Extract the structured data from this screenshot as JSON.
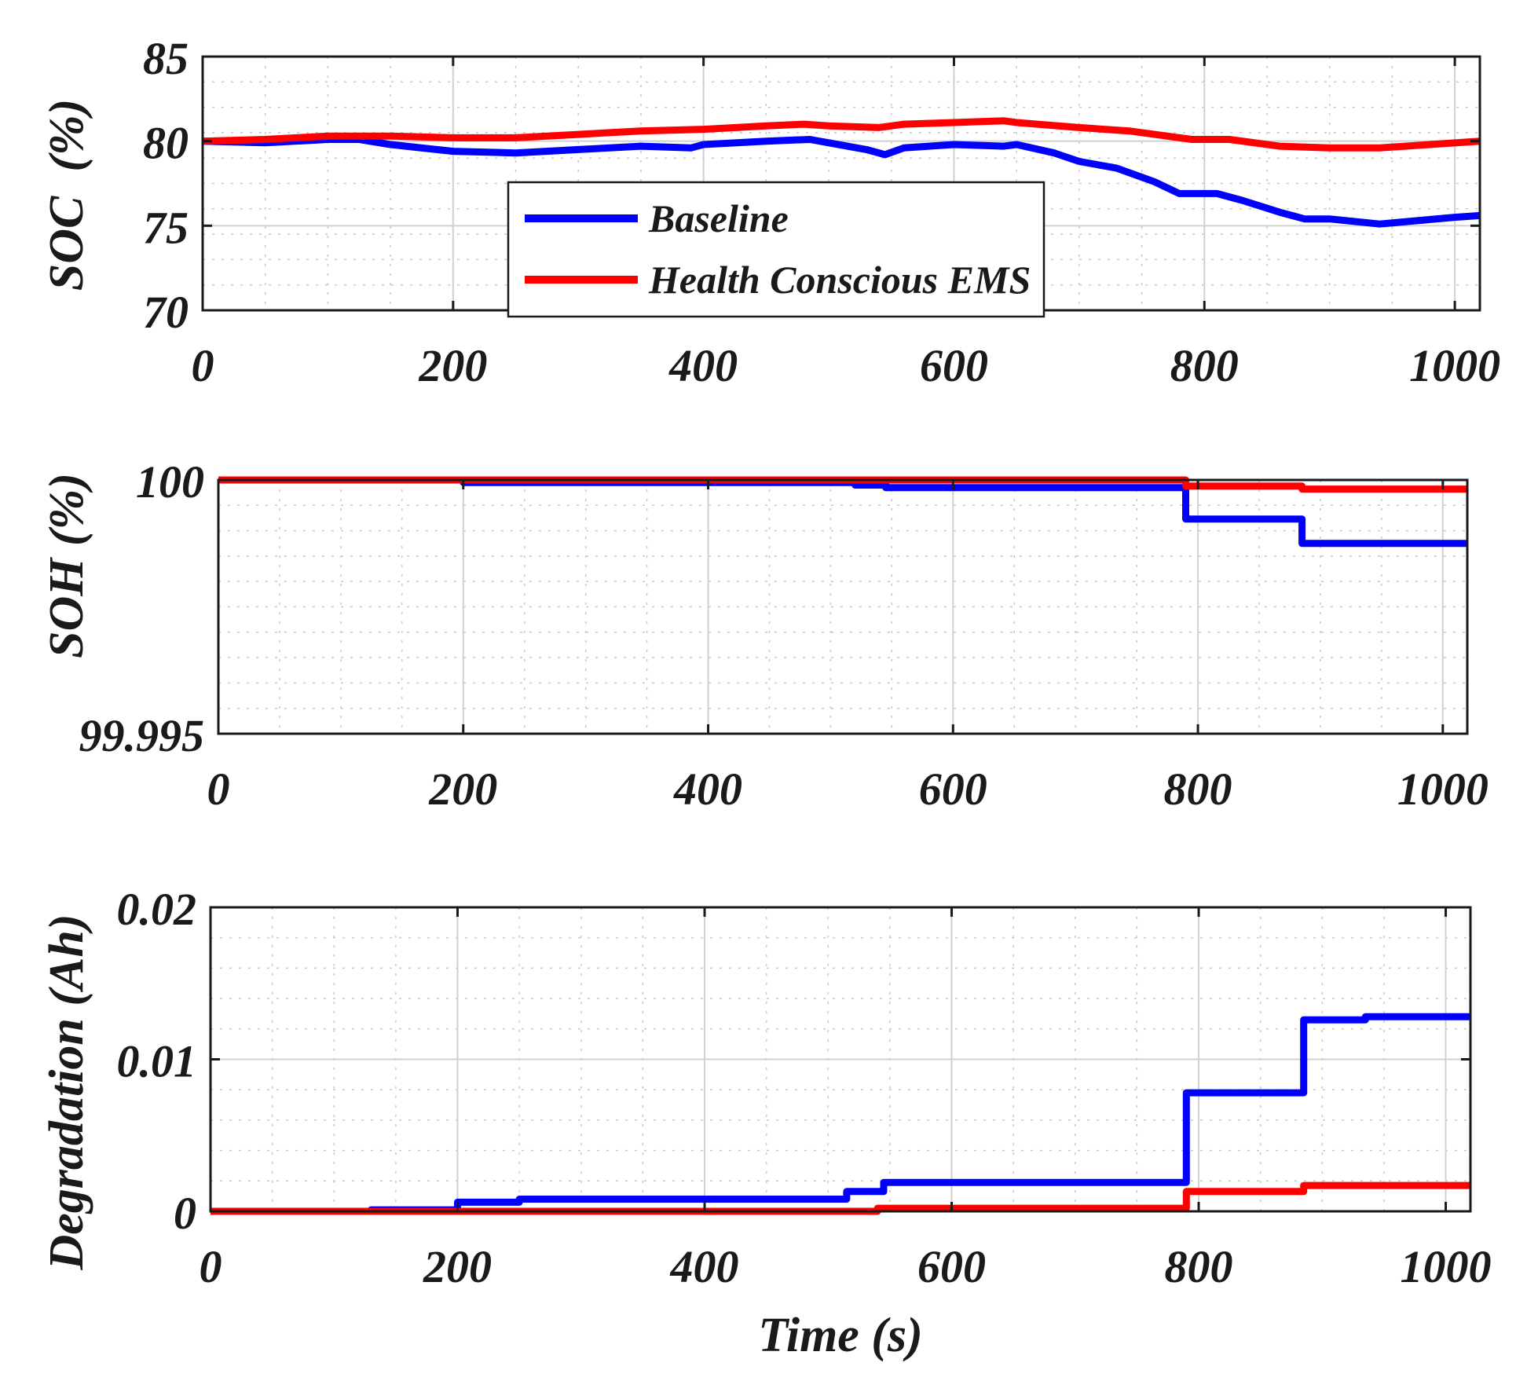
{
  "chart_data": [
    {
      "type": "line",
      "ylabel": "SOC  (%)",
      "xlabel": "",
      "xlim": [
        0,
        1020
      ],
      "ylim": [
        70,
        85
      ],
      "xticks": [
        "0",
        "200",
        "400",
        "600",
        "800",
        "1000"
      ],
      "yticks": [
        "85",
        "80",
        "75",
        "70"
      ],
      "grid": true,
      "legend": {
        "placement": "center",
        "entries": [
          "Baseline",
          "Health Conscious EMS"
        ]
      },
      "series": [
        {
          "name": "Baseline",
          "color": "#0000ff",
          "x": [
            0,
            50,
            100,
            125,
            150,
            200,
            250,
            300,
            350,
            390,
            400,
            450,
            485,
            500,
            530,
            545,
            560,
            600,
            640,
            650,
            680,
            700,
            730,
            760,
            780,
            810,
            830,
            860,
            880,
            900,
            940,
            970,
            1000,
            1020
          ],
          "y": [
            80.0,
            79.9,
            80.1,
            80.1,
            79.8,
            79.4,
            79.3,
            79.5,
            79.7,
            79.6,
            79.8,
            80.0,
            80.1,
            79.9,
            79.5,
            79.2,
            79.6,
            79.8,
            79.7,
            79.8,
            79.3,
            78.8,
            78.4,
            77.6,
            76.9,
            76.9,
            76.5,
            75.8,
            75.4,
            75.4,
            75.1,
            75.3,
            75.5,
            75.6
          ]
        },
        {
          "name": "Health Conscious EMS",
          "color": "#ff0000",
          "x": [
            0,
            50,
            100,
            120,
            150,
            200,
            250,
            300,
            350,
            400,
            450,
            480,
            500,
            540,
            560,
            600,
            640,
            650,
            700,
            740,
            770,
            790,
            820,
            860,
            900,
            940,
            980,
            1020
          ],
          "y": [
            80.0,
            80.1,
            80.3,
            80.3,
            80.3,
            80.2,
            80.2,
            80.4,
            80.6,
            80.7,
            80.9,
            81.0,
            80.9,
            80.8,
            81.0,
            81.1,
            81.2,
            81.1,
            80.8,
            80.6,
            80.3,
            80.1,
            80.1,
            79.7,
            79.6,
            79.6,
            79.8,
            80.0
          ]
        }
      ]
    },
    {
      "type": "line",
      "ylabel": "SOH (%)",
      "xlabel": "",
      "xlim": [
        0,
        1020
      ],
      "ylim": [
        99.995,
        100.0
      ],
      "xticks": [
        "0",
        "200",
        "400",
        "600",
        "800",
        "1000"
      ],
      "yticks": [
        "100",
        "99.995"
      ],
      "grid": true,
      "series": [
        {
          "name": "Baseline",
          "color": "#0000ff",
          "x": [
            0,
            200,
            200,
            520,
            520,
            545,
            545,
            790,
            790,
            885,
            885,
            1020
          ],
          "y": [
            100.0,
            100.0,
            99.99995,
            99.99995,
            99.9999,
            99.9999,
            99.99985,
            99.99985,
            99.99923,
            99.99923,
            99.99875,
            99.99875
          ]
        },
        {
          "name": "Health Conscious EMS",
          "color": "#ff0000",
          "x": [
            0,
            790,
            790,
            885,
            885,
            1020
          ],
          "y": [
            100.0,
            100.0,
            99.99988,
            99.99988,
            99.99982,
            99.99982
          ]
        }
      ]
    },
    {
      "type": "line",
      "ylabel": "Degradation (Ah)",
      "xlabel": "Time (s)",
      "xlim": [
        0,
        1020
      ],
      "ylim": [
        0,
        0.02
      ],
      "xticks": [
        "0",
        "200",
        "400",
        "600",
        "800",
        "1000"
      ],
      "yticks": [
        "0.02",
        "0.01",
        "0"
      ],
      "grid": true,
      "series": [
        {
          "name": "Baseline",
          "color": "#0000ff",
          "x": [
            0,
            130,
            130,
            200,
            200,
            250,
            250,
            515,
            515,
            545,
            545,
            790,
            790,
            885,
            885,
            935,
            935,
            1020
          ],
          "y": [
            0,
            0,
            0.0001,
            0.0001,
            0.0006,
            0.0006,
            0.0008,
            0.0008,
            0.0013,
            0.0013,
            0.0019,
            0.0019,
            0.0078,
            0.0078,
            0.0126,
            0.0126,
            0.0128,
            0.0128
          ]
        },
        {
          "name": "Health Conscious EMS",
          "color": "#ff0000",
          "x": [
            0,
            540,
            540,
            790,
            790,
            885,
            885,
            1020
          ],
          "y": [
            0,
            0,
            0.0002,
            0.0002,
            0.0013,
            0.0013,
            0.0017,
            0.0017
          ]
        }
      ]
    }
  ]
}
